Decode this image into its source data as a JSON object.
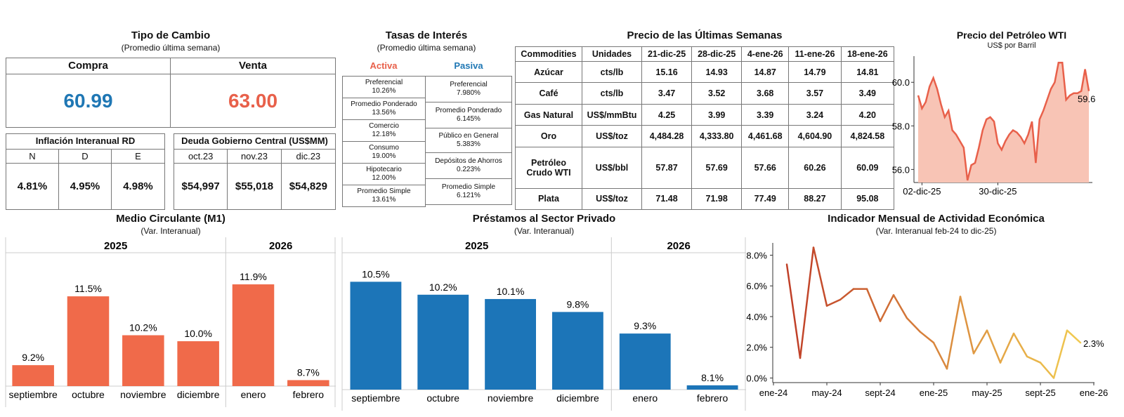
{
  "colors": {
    "compra": "#1f77b4",
    "venta": "#e8604a",
    "bar_orange": "#f06a4a",
    "bar_blue": "#1c75b8",
    "wti_line": "#e8604a",
    "wti_fill": "#f8c4b5"
  },
  "tipo_cambio": {
    "title": "Tipo de Cambio",
    "subtitle": "(Promedio última semana)",
    "compra_label": "Compra",
    "compra_value": "60.99",
    "venta_label": "Venta",
    "venta_value": "63.00"
  },
  "inflacion": {
    "title": "Inflación Interanual RD",
    "months": [
      "N",
      "D",
      "E"
    ],
    "values": [
      "4.81%",
      "4.95%",
      "4.98%"
    ]
  },
  "deuda": {
    "title": "Deuda Gobierno Central (US$MM)",
    "months": [
      "oct.23",
      "nov.23",
      "dic.23"
    ],
    "values": [
      "$54,997",
      "$55,018",
      "$54,829"
    ]
  },
  "tasas": {
    "title": "Tasas de Interés",
    "subtitle": "(Promedio última semana)",
    "activa_label": "Activa",
    "pasiva_label": "Pasiva",
    "activa": [
      {
        "name": "Preferencial",
        "value": "10.26%"
      },
      {
        "name": "Promedio Ponderado",
        "value": "13.56%"
      },
      {
        "name": "Comercio",
        "value": "12.18%"
      },
      {
        "name": "Consumo",
        "value": "19.00%"
      },
      {
        "name": "Hipotecario",
        "value": "12.00%"
      },
      {
        "name": "Promedio Simple",
        "value": "13.61%"
      }
    ],
    "pasiva": [
      {
        "name": "Preferencial",
        "value": "7.980%"
      },
      {
        "name": "Promedio Ponderado",
        "value": "6.145%"
      },
      {
        "name": "Público en General",
        "value": "5.383%"
      },
      {
        "name": "Depósitos de Ahorros",
        "value": "0.223%"
      },
      {
        "name": "Promedio Simple",
        "value": "6.121%"
      }
    ]
  },
  "commodities": {
    "title": "Precio de las Últimas Semanas",
    "headers": [
      "Commodities",
      "Unidades",
      "21-dic-25",
      "28-dic-25",
      "4-ene-26",
      "11-ene-26",
      "18-ene-26"
    ],
    "rows": [
      [
        "Azúcar",
        "cts/lb",
        "15.16",
        "14.93",
        "14.87",
        "14.79",
        "14.81"
      ],
      [
        "Café",
        "cts/lb",
        "3.47",
        "3.52",
        "3.68",
        "3.57",
        "3.49"
      ],
      [
        "Gas Natural",
        "US$/mmBtu",
        "4.25",
        "3.99",
        "3.39",
        "3.24",
        "4.20"
      ],
      [
        "Oro",
        "US$/toz",
        "4,484.28",
        "4,333.80",
        "4,461.68",
        "4,604.90",
        "4,824.58"
      ],
      [
        "Petróleo Crudo WTI",
        "US$/bbl",
        "57.87",
        "57.69",
        "57.66",
        "60.26",
        "60.09"
      ],
      [
        "Plata",
        "US$/toz",
        "71.48",
        "71.98",
        "77.49",
        "88.27",
        "95.08"
      ]
    ]
  },
  "chart_data": [
    {
      "type": "area",
      "title": "Precio del Petróleo WTI",
      "subtitle": "US$ por Barril",
      "yticks": [
        "60.0",
        "58.0",
        "56.0"
      ],
      "ylim": [
        55.4,
        61.2
      ],
      "xtick_labels": [
        "02-dic-25",
        "30-dic-25"
      ],
      "last_label": "59.6",
      "values": [
        59.4,
        58.8,
        59.1,
        59.8,
        60.2,
        59.7,
        59.0,
        58.4,
        58.7,
        57.8,
        57.6,
        57.3,
        57.0,
        55.5,
        56.2,
        56.3,
        57.0,
        57.8,
        58.3,
        58.4,
        58.2,
        57.2,
        56.9,
        57.3,
        57.6,
        57.8,
        57.7,
        57.5,
        57.2,
        57.6,
        58.2,
        56.3,
        58.3,
        58.7,
        59.2,
        59.7,
        60.0,
        60.9,
        60.9,
        59.2,
        59.4,
        59.5,
        59.5,
        59.6,
        60.6,
        59.6
      ]
    },
    {
      "type": "bar",
      "title": "Medio Circulante (M1)",
      "subtitle": "(Var. Interanual)",
      "groups": [
        {
          "label": "2025",
          "categories": [
            "septiembre",
            "octubre",
            "noviembre",
            "diciembre"
          ]
        },
        {
          "label": "2026",
          "categories": [
            "enero",
            "febrero"
          ]
        }
      ],
      "categories": [
        "septiembre",
        "octubre",
        "noviembre",
        "diciembre",
        "enero",
        "febrero"
      ],
      "values": [
        9.2,
        11.5,
        10.2,
        10.0,
        11.9,
        8.7
      ],
      "labels": [
        "9.2%",
        "11.5%",
        "10.2%",
        "10.0%",
        "11.9%",
        "8.7%"
      ],
      "ylim": [
        8.5,
        12.3
      ]
    },
    {
      "type": "bar",
      "title": "Préstamos al Sector Privado",
      "subtitle": "(Var. Interanual)",
      "groups": [
        {
          "label": "2025",
          "categories": [
            "septiembre",
            "octubre",
            "noviembre",
            "diciembre"
          ]
        },
        {
          "label": "2026",
          "categories": [
            "enero",
            "febrero"
          ]
        }
      ],
      "categories": [
        "septiembre",
        "octubre",
        "noviembre",
        "diciembre",
        "enero",
        "febrero"
      ],
      "values": [
        10.5,
        10.2,
        10.1,
        9.8,
        9.3,
        8.1
      ],
      "labels": [
        "10.5%",
        "10.2%",
        "10.1%",
        "9.8%",
        "9.3%",
        "8.1%"
      ],
      "ylim": [
        8.0,
        10.75
      ]
    },
    {
      "type": "line",
      "title": "Indicador Mensual de Actividad Económica",
      "subtitle": "(Var. Interanual feb-24 to dic-25)",
      "yticks": [
        "8.0%",
        "6.0%",
        "4.0%",
        "2.0%",
        "0.0%"
      ],
      "ylim": [
        -0.3,
        8.8
      ],
      "xtick_labels": [
        "ene-24",
        "may-24",
        "sept-24",
        "ene-25",
        "may-25",
        "sept-25",
        "ene-26"
      ],
      "last_label": "2.3%",
      "values": [
        7.4,
        1.3,
        8.5,
        4.7,
        5.1,
        5.8,
        5.8,
        3.7,
        5.4,
        3.9,
        3.0,
        2.3,
        0.6,
        5.3,
        1.6,
        3.1,
        1.0,
        2.9,
        1.4,
        1.0,
        0.0,
        3.1,
        2.3
      ]
    }
  ]
}
